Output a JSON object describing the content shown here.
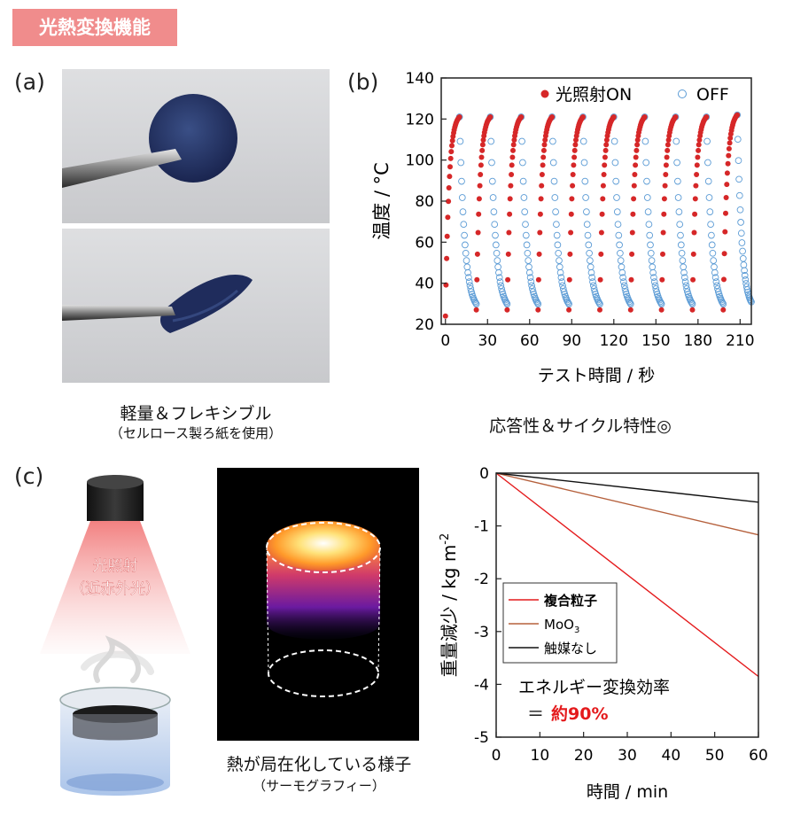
{
  "header": {
    "title": "光熱変換機能"
  },
  "panels": {
    "a": {
      "label": "(a)",
      "caption_main": "軽量＆フレキシブル",
      "caption_sub": "（セルロース製ろ紙を使用）"
    },
    "b": {
      "label": "(b)",
      "caption": "応答性＆サイクル特性◎"
    },
    "c": {
      "label": "(c)",
      "light_label_line1": "光照射",
      "light_label_line2": "（近赤外光）",
      "thermal_caption_main": "熱が局在化している様子",
      "thermal_caption_sub": "（サーモグラフィー）"
    }
  },
  "chart_data": [
    {
      "type": "scatter",
      "xlabel": "テスト時間 / 秒",
      "ylabel": "温度 / °C",
      "xlim": [
        -3,
        218
      ],
      "ylim": [
        20,
        140
      ],
      "xticks": [
        0,
        30,
        60,
        90,
        120,
        150,
        180,
        210
      ],
      "yticks": [
        20,
        40,
        60,
        80,
        100,
        120,
        140
      ],
      "legend_position": "top-right",
      "series": [
        {
          "name": "光照射ON",
          "marker": "filled-circle",
          "color": "#d62728",
          "cycles": [
            {
              "x_start": 0,
              "x_end": 10,
              "y_start": 24,
              "y_end": 121
            },
            {
              "x_start": 22,
              "x_end": 32,
              "y_start": 27,
              "y_end": 121
            },
            {
              "x_start": 44,
              "x_end": 54,
              "y_start": 27,
              "y_end": 121
            },
            {
              "x_start": 66,
              "x_end": 76,
              "y_start": 27,
              "y_end": 121
            },
            {
              "x_start": 88,
              "x_end": 98,
              "y_start": 27,
              "y_end": 121
            },
            {
              "x_start": 110,
              "x_end": 120,
              "y_start": 27,
              "y_end": 121
            },
            {
              "x_start": 132,
              "x_end": 142,
              "y_start": 27,
              "y_end": 121
            },
            {
              "x_start": 154,
              "x_end": 164,
              "y_start": 27,
              "y_end": 121
            },
            {
              "x_start": 176,
              "x_end": 186,
              "y_start": 27,
              "y_end": 121
            },
            {
              "x_start": 198,
              "x_end": 208,
              "y_start": 27,
              "y_end": 122
            }
          ]
        },
        {
          "name": "OFF",
          "marker": "open-circle",
          "color": "#5b9bd5",
          "cycles": [
            {
              "x_start": 10,
              "x_end": 22,
              "y_start": 121,
              "y_end": 26
            },
            {
              "x_start": 32,
              "x_end": 44,
              "y_start": 121,
              "y_end": 26
            },
            {
              "x_start": 54,
              "x_end": 66,
              "y_start": 121,
              "y_end": 26
            },
            {
              "x_start": 76,
              "x_end": 88,
              "y_start": 121,
              "y_end": 26
            },
            {
              "x_start": 98,
              "x_end": 110,
              "y_start": 121,
              "y_end": 26
            },
            {
              "x_start": 120,
              "x_end": 132,
              "y_start": 121,
              "y_end": 26
            },
            {
              "x_start": 142,
              "x_end": 154,
              "y_start": 121,
              "y_end": 26
            },
            {
              "x_start": 164,
              "x_end": 176,
              "y_start": 121,
              "y_end": 26
            },
            {
              "x_start": 186,
              "x_end": 198,
              "y_start": 121,
              "y_end": 26
            },
            {
              "x_start": 208,
              "x_end": 218,
              "y_start": 122,
              "y_end": 27
            }
          ]
        }
      ]
    },
    {
      "type": "line",
      "xlabel": "時間 / min",
      "ylabel": "重量減少 / kg m",
      "ylabel_superscript": "-2",
      "xlim": [
        0,
        60
      ],
      "ylim": [
        -5,
        0
      ],
      "xticks": [
        0,
        10,
        20,
        30,
        40,
        50,
        60
      ],
      "yticks": [
        0,
        -1,
        -2,
        -3,
        -4,
        -5
      ],
      "legend_position": "middle-left",
      "series": [
        {
          "name": "複合粒子",
          "color": "#e41a1c",
          "x": [
            0,
            60
          ],
          "y": [
            0,
            -3.85
          ]
        },
        {
          "name": "MoO",
          "name_subscript": "3",
          "color": "#b5603c",
          "x": [
            0,
            60
          ],
          "y": [
            0,
            -1.17
          ]
        },
        {
          "name": "触媒なし",
          "color": "#111111",
          "x": [
            0,
            60
          ],
          "y": [
            0,
            -0.55
          ]
        }
      ],
      "annotation_line1": "エネルギー変換効率",
      "annotation_prefix": "＝",
      "annotation_value": "約90%",
      "annotation_value_color": "#e41a1c"
    }
  ]
}
